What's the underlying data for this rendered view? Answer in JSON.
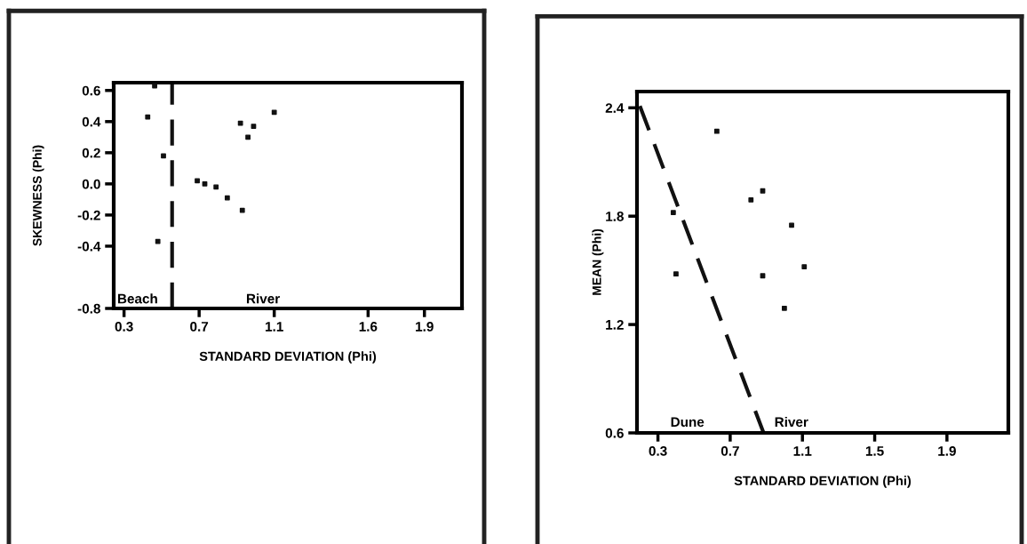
{
  "chart_data": [
    {
      "type": "scatter",
      "xlabel": "STANDARD DEVIATION (Phi)",
      "ylabel": "SKEWNESS (Phi)",
      "marker": "square",
      "series": [
        {
          "color": "#111111",
          "x": [
            0.463,
            0.426,
            0.51,
            0.48,
            0.69,
            0.73,
            0.79,
            0.85,
            0.93,
            0.92,
            0.96,
            0.99,
            1.1
          ],
          "values": [
            0.63,
            0.43,
            0.18,
            -0.37,
            0.02,
            0.0,
            -0.02,
            -0.09,
            -0.17,
            0.39,
            0.3,
            0.37,
            0.46
          ]
        }
      ],
      "xlim": [
        0.245,
        2.1
      ],
      "xticks": [
        0.3,
        0.7,
        1.1,
        1.6,
        1.9
      ],
      "ylim": [
        -0.8,
        0.65
      ],
      "yticks": [
        0.6,
        0.4,
        0.2,
        {
          "value": 0,
          "label": "0.0"
        },
        -0.2,
        -0.4,
        -0.8
      ],
      "ref_lines": [
        {
          "axis": "x",
          "value": 0.556,
          "line_style": "dashed",
          "color": "#111111"
        }
      ],
      "annotations": [
        "Beach",
        "River"
      ],
      "grid": false,
      "legend": false
    },
    {
      "type": "scatter",
      "xlabel": "STANDARD DEVIATION (Phi)",
      "ylabel": "MEAN (Phi)",
      "marker": "square",
      "series": [
        {
          "color": "#111111",
          "x": [
            0.626,
            0.815,
            0.88,
            0.385,
            1.04,
            1.11,
            0.4,
            0.88,
            1.0
          ],
          "values": [
            2.27,
            1.89,
            1.94,
            1.82,
            1.75,
            1.52,
            1.48,
            1.47,
            1.29
          ]
        },
        {
          "type": "line",
          "color": "#111111",
          "line_style": "dashed",
          "marker": "none",
          "x": [
            0.2,
            0.885
          ],
          "values": [
            2.41,
            0.6
          ]
        }
      ],
      "xlim": [
        0.184,
        2.24
      ],
      "xticks": [
        0.3,
        0.7,
        1.1,
        1.5,
        1.9
      ],
      "ylim": [
        0.6,
        2.49
      ],
      "yticks": [
        0.6,
        1.2,
        1.8,
        2.4
      ],
      "annotations": [
        "Dune",
        "River"
      ],
      "grid": false,
      "legend": false
    }
  ]
}
